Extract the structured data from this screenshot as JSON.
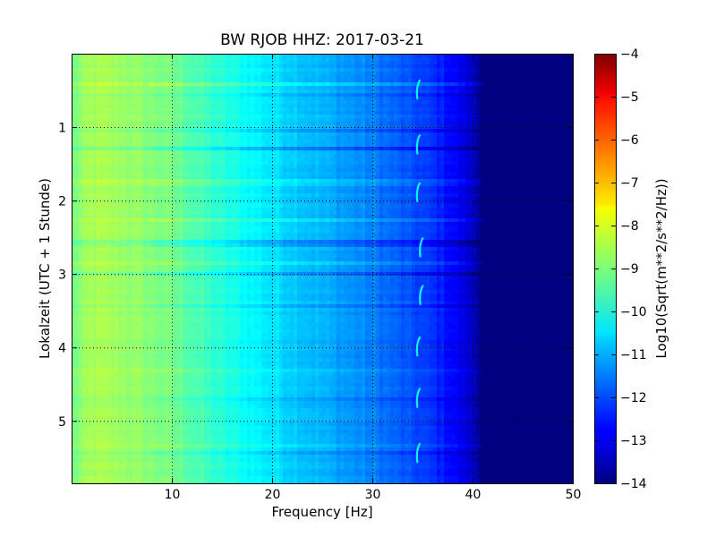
{
  "chart_data": {
    "type": "heatmap",
    "title": "BW RJOB HHZ: 2017-03-21",
    "xlabel": "Frequency [Hz]",
    "ylabel": "Lokalzeit (UTC + 1 Stunde)",
    "xlim": [
      0,
      50
    ],
    "ylim": [
      5.85,
      0
    ],
    "x_ticks": [
      10,
      20,
      30,
      40,
      50
    ],
    "x_tick_labels": [
      "10",
      "20",
      "30",
      "40",
      "50"
    ],
    "y_ticks": [
      1,
      2,
      3,
      4,
      5
    ],
    "y_tick_labels": [
      "1",
      "2",
      "3",
      "4",
      "5"
    ],
    "grid": true,
    "colormap": "jet",
    "colorbar": {
      "label": "Log10(Sqrt(m**2/s**2/Hz))",
      "range": [
        -14,
        -4
      ],
      "ticks": [
        -14,
        -13,
        -12,
        -11,
        -10,
        -9,
        -8,
        -7,
        -6,
        -5,
        -4
      ],
      "tick_labels": [
        "−14",
        "−13",
        "−12",
        "−11",
        "−10",
        "−9",
        "−8",
        "−7",
        "−6",
        "−5",
        "−4"
      ]
    },
    "frequency_profile": {
      "frequency_hz": [
        0,
        2,
        5,
        10,
        15,
        20,
        25,
        30,
        33,
        36,
        38,
        40,
        41,
        42,
        50
      ],
      "level": [
        -9.1,
        -8.6,
        -8.7,
        -9.1,
        -9.9,
        -10.5,
        -11.0,
        -11.5,
        -11.9,
        -12.3,
        -12.7,
        -13.3,
        -14.0,
        -14.0,
        -14.0
      ]
    },
    "time_bands": [
      {
        "time": 0.42,
        "offset": 0.5
      },
      {
        "time": 0.55,
        "offset": -0.2
      },
      {
        "time": 0.85,
        "offset": 0.2
      },
      {
        "time": 1.05,
        "offset": -0.3
      },
      {
        "time": 1.3,
        "offset": -0.6
      },
      {
        "time": 1.75,
        "offset": 0.3
      },
      {
        "time": 2.25,
        "offset": 0.4
      },
      {
        "time": 2.55,
        "offset": -0.6
      },
      {
        "time": 2.62,
        "offset": -0.5
      },
      {
        "time": 2.85,
        "offset": 0.3
      },
      {
        "time": 3.0,
        "offset": -0.4
      },
      {
        "time": 3.45,
        "offset": -0.4
      },
      {
        "time": 4.3,
        "offset": 0.2
      },
      {
        "time": 4.7,
        "offset": -0.3
      },
      {
        "time": 5.35,
        "offset": 0.3
      },
      {
        "time": 5.45,
        "offset": -0.3
      }
    ],
    "tonal_marks": [
      {
        "time": 0.5,
        "frequency_hz": 34.5
      },
      {
        "time": 1.25,
        "frequency_hz": 34.5
      },
      {
        "time": 1.9,
        "frequency_hz": 34.5
      },
      {
        "time": 2.65,
        "frequency_hz": 34.8
      },
      {
        "time": 3.3,
        "frequency_hz": 34.8
      },
      {
        "time": 4.0,
        "frequency_hz": 34.5
      },
      {
        "time": 4.7,
        "frequency_hz": 34.5
      },
      {
        "time": 5.45,
        "frequency_hz": 34.5
      }
    ]
  }
}
